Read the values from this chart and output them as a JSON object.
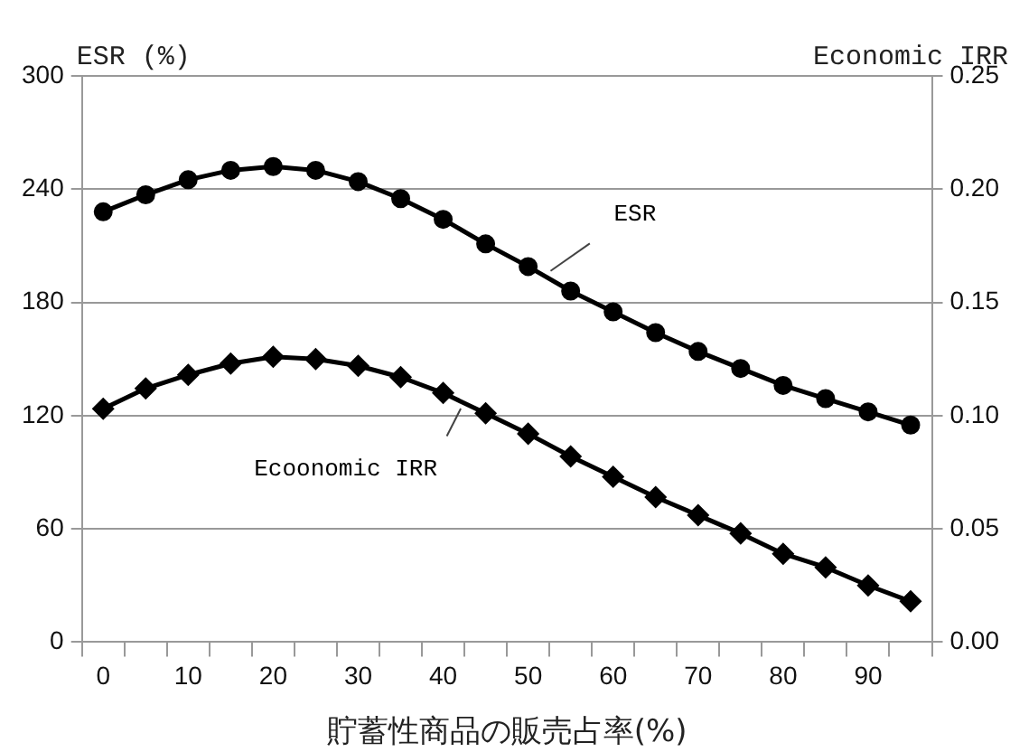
{
  "chart_data": {
    "type": "line",
    "ylabel": "ESR (%)",
    "y2label": "Economic IRR",
    "xlabel": "貯蓄性商品の販売占率(%)",
    "categories": [
      "0",
      null,
      "10",
      null,
      "20",
      null,
      "30",
      null,
      "40",
      null,
      "50",
      null,
      "60",
      null,
      "70",
      null,
      "80",
      null,
      "90",
      null
    ],
    "series": [
      {
        "name": "ESR",
        "color": "#000000",
        "marker": "circle",
        "values": [
          228,
          237,
          245,
          250,
          252,
          250,
          244,
          235,
          224,
          211,
          199,
          186,
          175,
          164,
          154,
          145,
          136,
          129,
          122,
          115
        ]
      },
      {
        "name": "Ecoonomic IRR",
        "axis": "y2",
        "color": "#000000",
        "marker": "diamond",
        "values": [
          0.103,
          0.112,
          0.118,
          0.123,
          0.126,
          0.125,
          0.122,
          0.117,
          0.11,
          0.101,
          0.092,
          0.082,
          0.073,
          0.064,
          0.056,
          0.048,
          0.039,
          0.033,
          0.025,
          0.018
        ]
      }
    ],
    "ylim": [
      0,
      300
    ],
    "yticks": [
      0,
      60,
      120,
      180,
      240,
      300
    ],
    "y2lim": [
      0,
      0.25
    ],
    "y2ticks": [
      {
        "value": 0,
        "label": "0.00"
      },
      {
        "value": 0.05,
        "label": "0.05"
      },
      {
        "value": 0.1,
        "label": "0.10"
      },
      {
        "value": 0.15,
        "label": "0.15"
      },
      {
        "value": 0.2,
        "label": "0.20"
      },
      {
        "value": 0.25,
        "label": "0.25"
      }
    ],
    "grid": "y",
    "legend": false,
    "line_style": "solid"
  }
}
